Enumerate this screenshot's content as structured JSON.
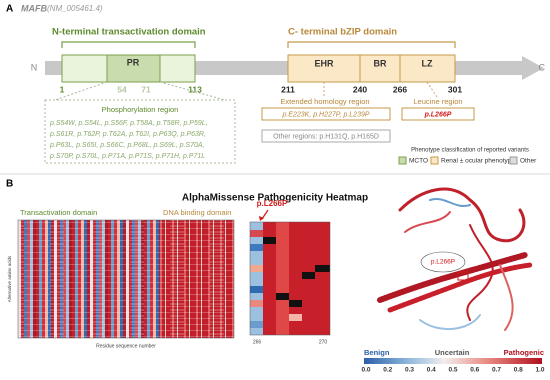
{
  "panel_a": {
    "label": "A",
    "gene": "MAFB",
    "transcript": "(NM_005461.4)",
    "n_domain": "N-terminal transactivation domain",
    "c_domain": "C- terminal bZIP domain",
    "n_end": "N",
    "c_end": "C",
    "boxes": {
      "pr": "PR",
      "ehr": "EHR",
      "br": "BR",
      "lz": "LZ"
    },
    "positions": [
      "1",
      "54",
      "71",
      "113",
      "211",
      "240",
      "266",
      "301"
    ],
    "phospho": {
      "title": "Phosphorylation region",
      "lines": [
        "p.S54W, p.S54L, p.S56F, p.T58A, p.T58R, p.P59L,",
        "p.S61R, p.T62P, p.T62A, p.T62I, p.P63Q, p.P63R,",
        "p.P63L, p.S65I, p.S66C, p.P68L, p.S69L, p.S70A,",
        "p.S70P, p.S70L, p.P71A, p.P71S, p.P71H, p.P71L"
      ]
    },
    "ehr_region": {
      "title": "Extended homology region",
      "variants": "p.E223K, p.H227P, p.L239P"
    },
    "leucine_region": {
      "title": "Leucine region",
      "variants": "p.L266P"
    },
    "other_regions": "Other regions: p.H131Q, p.H165D",
    "legend": {
      "title": "Phenotype classification of reported variants",
      "items": [
        "MCTO",
        "Renal ± ocular phenotype",
        "Other"
      ]
    }
  },
  "panel_b": {
    "label": "B",
    "title": "AlphaMissense Pathogenicity Heatmap",
    "left_domain": "Transactivation domain",
    "right_domain": "DNA binding domain",
    "y_label": "Alternative amino acids",
    "x_label": "Residue sequence number",
    "zoom_callout": "p.L266P",
    "zoom_ticks": [
      "266",
      "270"
    ],
    "structure_label": "p.L266P",
    "colorbar": {
      "benign": "Benign",
      "uncertain": "Uncertain",
      "pathogenic": "Pathogenic",
      "ticks": [
        "0.0",
        "0.2",
        "0.3",
        "0.4",
        "0.5",
        "0.6",
        "0.7",
        "0.8",
        "1.0"
      ]
    }
  }
}
